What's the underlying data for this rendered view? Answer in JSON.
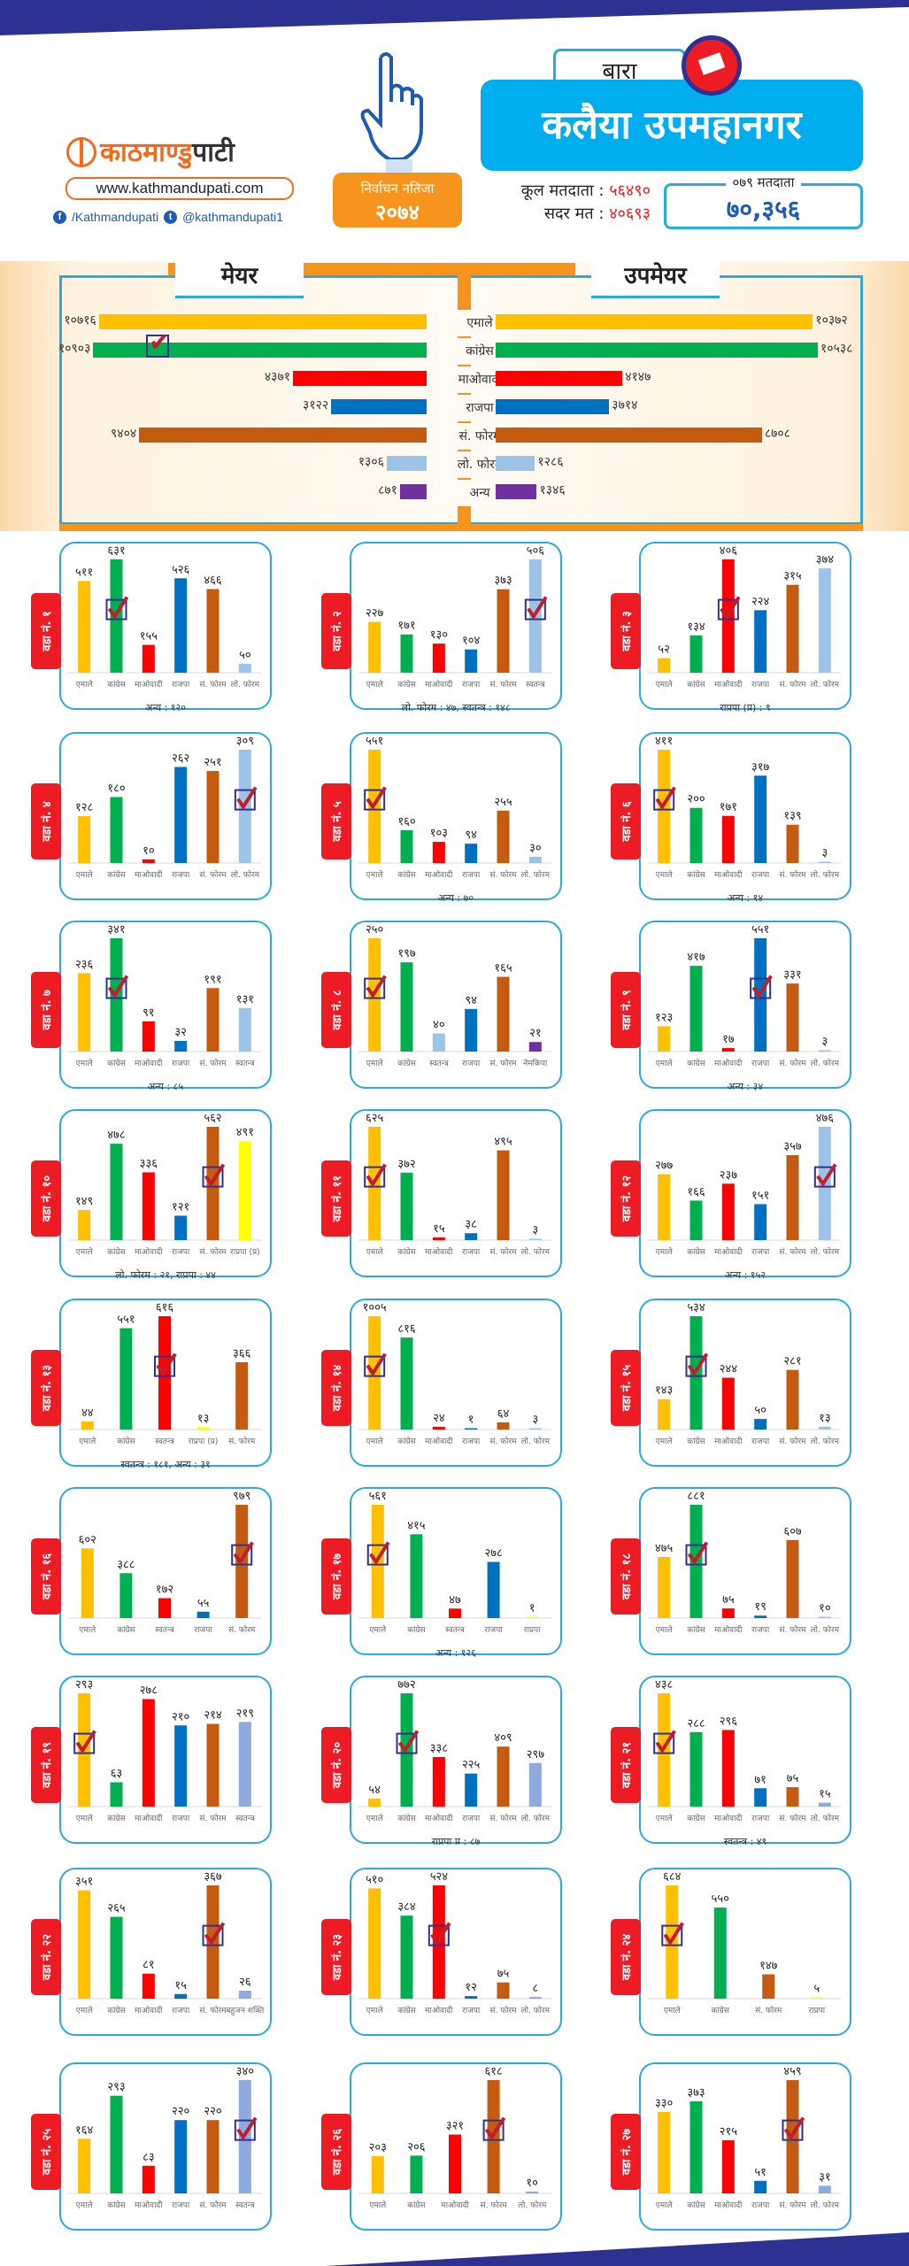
{
  "header": {
    "brand": {
      "name_orange": "काठमाण्डु",
      "name_dark": "पाटी",
      "website": "www.kathmandupati.com",
      "facebook": "/Kathmandupati",
      "twitter": "@kathmandupati1"
    },
    "result_badge": {
      "line1": "निर्वाचन नतिजा",
      "line2": "२०७४"
    },
    "district": "बारा",
    "municipality": "कलैया उपमहानगर",
    "total_voters_label": "कूल मतदाता :",
    "total_voters_value": "५६४९०",
    "valid_votes_label": "सदर मत :",
    "valid_votes_value": "४०६९३",
    "voters_079_label": "०७९ मतदाता",
    "voters_079_value": "७०,३५६"
  },
  "colors": {
    "एमाले": "#ffc000",
    "कांग्रेस": "#00b050",
    "माओवादी": "#ff0000",
    "राजपा": "#0070c0",
    "सं. फोरम": "#c55a11",
    "लो. फोरम": "#9dc3e6",
    "अन्य": "#7030a0",
    "स्वतन्त्र": "#9dc3e6",
    "नेमकिपा": "#7030a0",
    "राप्रपा (प्र)": "#ffff00",
    "राप्रपा": "#ffff00",
    "बहुजन शक्ति": "#8faadc",
    "accent_blue": "#29abe2",
    "accent_orange": "#f7941d",
    "tag_red": "#ed1c24"
  },
  "chart_data": [
    {
      "type": "bar",
      "title": "मेयर / उपमेयर",
      "mayor_title": "मेयर",
      "deputy_title": "उपमेयर",
      "categories": [
        "एमाले",
        "कांग्रेस",
        "माओवादी",
        "राजपा",
        "सं. फोरम",
        "लो. फोरम",
        "अन्य"
      ],
      "series": [
        {
          "name": "मेयर",
          "values": [
            10716,
            10903,
            4371,
            3122,
            9404,
            1306,
            871
          ],
          "labels": [
            "१०७१६",
            "१०९०३",
            "४३७१",
            "३१२२",
            "९४०४",
            "१३०६",
            "८७१"
          ],
          "winner": "कांग्रेस"
        },
        {
          "name": "उपमेयर",
          "values": [
            10372,
            10538,
            4147,
            3714,
            8708,
            1286,
            1346
          ],
          "labels": [
            "१०३७२",
            "१०५३८",
            "४१४७",
            "३७१४",
            "८७०८",
            "१२८६",
            "१३४६"
          ]
        }
      ],
      "orientation": "horizontal-mirrored"
    },
    {
      "type": "bar",
      "title": "वडा अनुसार नतिजा",
      "wards": [
        {
          "label": "वडा नं. १",
          "categories": [
            "एमाले",
            "कांग्रेस",
            "माओवादी",
            "राजपा",
            "सं. फोरम",
            "लो. फोरम"
          ],
          "values": [
            511,
            631,
            155,
            526,
            466,
            50
          ],
          "labels": [
            "५११",
            "६३१",
            "१५५",
            "५२६",
            "४६६",
            "५०"
          ],
          "winner": 1,
          "note": "अन्य : १२०"
        },
        {
          "label": "वडा नं. २",
          "categories": [
            "एमाले",
            "कांग्रेस",
            "माओवादी",
            "राजपा",
            "सं. फोरम",
            "स्वतन्त्र"
          ],
          "values": [
            227,
            171,
            130,
            104,
            373,
            506
          ],
          "labels": [
            "२२७",
            "१७१",
            "१३०",
            "१०४",
            "३७३",
            "५०६"
          ],
          "winner": 5,
          "note": "लो. फोरम : ४७, स्वतन्त्र : १४८"
        },
        {
          "label": "वडा नं. ३",
          "categories": [
            "एमाले",
            "कांग्रेस",
            "माओवादी",
            "राजपा",
            "सं. फोरम",
            "लो. फोरम"
          ],
          "values": [
            52,
            134,
            406,
            224,
            315,
            374
          ],
          "labels": [
            "५२",
            "१३४",
            "४०६",
            "२२४",
            "३१५",
            "३७४"
          ],
          "winner": 2,
          "note": "राप्रपा (प्र) : ९"
        },
        {
          "label": "वडा नं. ४",
          "categories": [
            "एमाले",
            "कांग्रेस",
            "माओवादी",
            "राजपा",
            "सं. फोरम",
            "लो. फोरम"
          ],
          "values": [
            128,
            180,
            10,
            262,
            251,
            309
          ],
          "labels": [
            "१२८",
            "१८०",
            "१०",
            "२६२",
            "२५१",
            "३०९"
          ],
          "winner": 5,
          "note": ""
        },
        {
          "label": "वडा नं. ५",
          "categories": [
            "एमाले",
            "कांग्रेस",
            "माओवादी",
            "राजपा",
            "सं. फोरम",
            "लो. फोरम"
          ],
          "values": [
            551,
            160,
            103,
            94,
            255,
            30
          ],
          "labels": [
            "५५१",
            "१६०",
            "१०३",
            "९४",
            "२५५",
            "३०"
          ],
          "winner": 0,
          "note": "अन्य : ७०"
        },
        {
          "label": "वडा नं. ६",
          "categories": [
            "एमाले",
            "कांग्रेस",
            "माओवादी",
            "राजपा",
            "सं. फोरम",
            "लो. फोरम"
          ],
          "values": [
            411,
            200,
            171,
            317,
            139,
            3
          ],
          "labels": [
            "४११",
            "२००",
            "१७१",
            "३१७",
            "१३९",
            "३"
          ],
          "winner": 0,
          "note": "अन्य : १४"
        },
        {
          "label": "वडा नं. ७",
          "categories": [
            "एमाले",
            "कांग्रेस",
            "माओवादी",
            "राजपा",
            "सं. फोरम",
            "स्वतन्त्र"
          ],
          "values": [
            236,
            341,
            91,
            32,
            191,
            131
          ],
          "labels": [
            "२३६",
            "३४१",
            "९१",
            "३२",
            "१९१",
            "१३१"
          ],
          "winner": 1,
          "note": "अन्य : ८५"
        },
        {
          "label": "वडा नं. ८",
          "categories": [
            "एमाले",
            "कांग्रेस",
            "स्वतन्त्र",
            "राजपा",
            "सं. फोरम",
            "नेमकिपा"
          ],
          "values": [
            250,
            197,
            40,
            94,
            165,
            21
          ],
          "labels": [
            "२५०",
            "१९७",
            "४०",
            "९४",
            "१६५",
            "२१"
          ],
          "winner": 0,
          "note": ""
        },
        {
          "label": "वडा नं. ९",
          "categories": [
            "एमाले",
            "कांग्रेस",
            "माओवादी",
            "राजपा",
            "सं. फोरम",
            "लो. फोरम"
          ],
          "values": [
            123,
            417,
            17,
            551,
            331,
            3
          ],
          "labels": [
            "१२३",
            "४१७",
            "१७",
            "५५१",
            "३३१",
            "३"
          ],
          "winner": 3,
          "note": "अन्य : ३४"
        },
        {
          "label": "वडा नं. १०",
          "categories": [
            "एमाले",
            "कांग्रेस",
            "माओवादी",
            "राजपा",
            "सं. फोरम",
            "राप्रपा (प्र)"
          ],
          "values": [
            149,
            478,
            336,
            121,
            562,
            491
          ],
          "labels": [
            "१४९",
            "४७८",
            "३३६",
            "१२१",
            "५६२",
            "४९१"
          ],
          "winner": 4,
          "note": "लो. फोरम : २१, राप्रपा : ४४"
        },
        {
          "label": "वडा नं. ११",
          "categories": [
            "एमाले",
            "कांग्रेस",
            "माओवादी",
            "राजपा",
            "सं. फोरम",
            "लो. फोरम"
          ],
          "values": [
            625,
            372,
            15,
            38,
            495,
            3
          ],
          "labels": [
            "६२५",
            "३७२",
            "१५",
            "३८",
            "४९५",
            "३"
          ],
          "winner": 0,
          "note": ""
        },
        {
          "label": "वडा नं. १२",
          "categories": [
            "एमाले",
            "कांग्रेस",
            "माओवादी",
            "राजपा",
            "सं. फोरम",
            "लो. फोरम"
          ],
          "values": [
            277,
            166,
            237,
            151,
            357,
            476
          ],
          "labels": [
            "२७७",
            "१६६",
            "२३७",
            "१५१",
            "३५७",
            "४७६"
          ],
          "winner": 5,
          "note": "अन्य : १५२"
        },
        {
          "label": "वडा नं. १३",
          "categories": [
            "एमाले",
            "कांग्रेस",
            "स्वतन्त्र",
            "राप्रपा (प्र)",
            "सं. फोरम"
          ],
          "values": [
            44,
            551,
            616,
            13,
            366
          ],
          "labels": [
            "४४",
            "५५१",
            "६१६",
            "१३",
            "३६६"
          ],
          "colors_override": {
            "2": "#ff0000"
          },
          "winner": 2,
          "note": "स्वतन्त्र : १८१, अन्य : ३१"
        },
        {
          "label": "वडा नं. १४",
          "categories": [
            "एमाले",
            "कांग्रेस",
            "माओवादी",
            "राजपा",
            "सं. फोरम",
            "लो. फोरम"
          ],
          "values": [
            1005,
            816,
            24,
            1,
            64,
            3
          ],
          "labels": [
            "१००५",
            "८१६",
            "२४",
            "१",
            "६४",
            "३"
          ],
          "winner": 0,
          "note": ""
        },
        {
          "label": "वडा नं. १५",
          "categories": [
            "एमाले",
            "कांग्रेस",
            "माओवादी",
            "राजपा",
            "सं. फोरम",
            "लो. फोरम"
          ],
          "values": [
            143,
            534,
            244,
            50,
            281,
            13
          ],
          "labels": [
            "१४३",
            "५३४",
            "२४४",
            "५०",
            "२८१",
            "१३"
          ],
          "winner": 1,
          "note": ""
        },
        {
          "label": "वडा नं. १६",
          "categories": [
            "एमाले",
            "कांग्रेस",
            "स्वतन्त्र",
            "राजपा",
            "सं. फोरम"
          ],
          "values": [
            602,
            388,
            172,
            55,
            979
          ],
          "labels": [
            "६०२",
            "३८८",
            "१७२",
            "५५",
            "९७९"
          ],
          "colors_override": {
            "2": "#ff0000"
          },
          "winner": 4,
          "note": ""
        },
        {
          "label": "वडा नं. १७",
          "categories": [
            "एमाले",
            "कांग्रेस",
            "स्वतन्त्र",
            "राजपा",
            "राप्रपा"
          ],
          "values": [
            561,
            415,
            47,
            278,
            1
          ],
          "labels": [
            "५६१",
            "४१५",
            "४७",
            "२७८",
            "१"
          ],
          "colors_override": {
            "2": "#ff0000"
          },
          "winner": 0,
          "note": "अन्य : १२६"
        },
        {
          "label": "वडा नं. १८",
          "categories": [
            "एमाले",
            "कांग्रेस",
            "माओवादी",
            "राजपा",
            "सं. फोरम",
            "लो. फोरम"
          ],
          "values": [
            475,
            881,
            75,
            19,
            607,
            10
          ],
          "labels": [
            "४७५",
            "८८१",
            "७५",
            "१९",
            "६०७",
            "१०"
          ],
          "winner": 1,
          "note": ""
        },
        {
          "label": "वडा नं. १९",
          "categories": [
            "एमाले",
            "कांग्रेस",
            "माओवादी",
            "राजपा",
            "सं. फोरम",
            "स्वतन्त्र"
          ],
          "values": [
            293,
            63,
            278,
            210,
            214,
            219
          ],
          "labels": [
            "२९३",
            "६३",
            "२७८",
            "२१०",
            "२१४",
            "२१९"
          ],
          "colors_override": {
            "5": "#8faadc"
          },
          "winner": 0,
          "note": ""
        },
        {
          "label": "वडा नं. २०",
          "categories": [
            "एमाले",
            "कांग्रेस",
            "माओवादी",
            "राजपा",
            "सं. फोरम",
            "लो. फोरम"
          ],
          "values": [
            54,
            772,
            338,
            225,
            409,
            297
          ],
          "labels": [
            "५४",
            "७७२",
            "३३८",
            "२२५",
            "४०९",
            "२९७"
          ],
          "colors_override": {
            "5": "#8faadc"
          },
          "winner": 1,
          "note": "राप्रपा प्र : ८७"
        },
        {
          "label": "वडा नं. २१",
          "categories": [
            "एमाले",
            "कांग्रेस",
            "माओवादी",
            "राजपा",
            "सं. फोरम",
            "लो. फोरम"
          ],
          "values": [
            438,
            288,
            296,
            71,
            75,
            15
          ],
          "labels": [
            "४३८",
            "२८८",
            "२९६",
            "७१",
            "७५",
            "१५"
          ],
          "colors_override": {
            "5": "#8faadc"
          },
          "winner": 0,
          "note": "स्वतन्त्र : ४९"
        },
        {
          "label": "वडा नं. २२",
          "categories": [
            "एमाले",
            "कांग्रेस",
            "माओवादी",
            "राजपा",
            "सं. फोरम",
            "बहुजन शक्ति"
          ],
          "values": [
            351,
            265,
            81,
            15,
            367,
            26
          ],
          "labels": [
            "३५१",
            "२६५",
            "८१",
            "१५",
            "३६७",
            "२६"
          ],
          "winner": 4,
          "note": ""
        },
        {
          "label": "वडा नं. २३",
          "categories": [
            "एमाले",
            "कांग्रेस",
            "माओवादी",
            "राजपा",
            "सं. फोरम",
            "लो. फोरम"
          ],
          "values": [
            510,
            384,
            524,
            12,
            75,
            8
          ],
          "labels": [
            "५१०",
            "३८४",
            "५२४",
            "१२",
            "७५",
            "८"
          ],
          "colors_override": {
            "5": "#8faadc"
          },
          "winner": 2,
          "note": ""
        },
        {
          "label": "वडा नं. २४",
          "categories": [
            "एमाले",
            "कांग्रेस",
            "सं. फोरम",
            "राप्रपा"
          ],
          "values": [
            684,
            550,
            147,
            5
          ],
          "labels": [
            "६८४",
            "५५०",
            "१४७",
            "५"
          ],
          "winner": 0,
          "note": ""
        },
        {
          "label": "वडा नं. २५",
          "categories": [
            "एमाले",
            "कांग्रेस",
            "माओवादी",
            "राजपा",
            "सं. फोरम",
            "स्वतन्त्र"
          ],
          "values": [
            164,
            293,
            83,
            220,
            220,
            340
          ],
          "labels": [
            "१६४",
            "२९३",
            "८३",
            "२२०",
            "२२०",
            "३४०"
          ],
          "colors_override": {
            "5": "#8faadc"
          },
          "winner": 5,
          "note": ""
        },
        {
          "label": "वडा नं. २६",
          "categories": [
            "एमाले",
            "कांग्रेस",
            "माओवादी",
            "सं. फोरम",
            "लो. फोरम"
          ],
          "values": [
            203,
            206,
            321,
            618,
            10
          ],
          "labels": [
            "२०३",
            "२०६",
            "३२१",
            "६१८",
            "१०"
          ],
          "colors_override": {
            "4": "#8faadc"
          },
          "winner": 3,
          "note": ""
        },
        {
          "label": "वडा नं. २७",
          "categories": [
            "एमाले",
            "कांग्रेस",
            "माओवादी",
            "राजपा",
            "सं. फोरम",
            "लो. फोरम"
          ],
          "values": [
            330,
            373,
            215,
            51,
            459,
            31
          ],
          "labels": [
            "३३०",
            "३७३",
            "२१५",
            "५१",
            "४५९",
            "३१"
          ],
          "colors_override": {
            "5": "#8faadc"
          },
          "winner": 4,
          "note": ""
        }
      ]
    }
  ]
}
